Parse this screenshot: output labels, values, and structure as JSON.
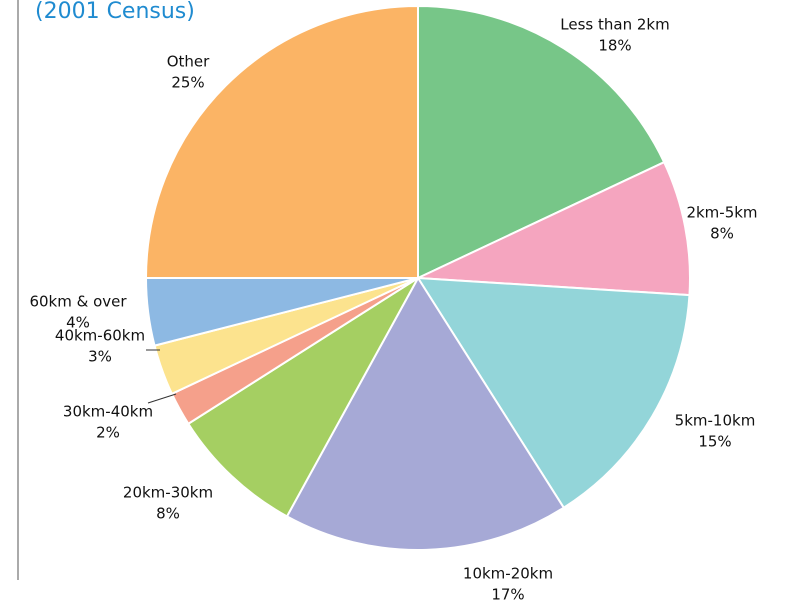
{
  "chart_data": {
    "type": "pie",
    "title": "(2001 Census)",
    "categories": [
      "Less than 2km",
      "2km-5km",
      "5km-10km",
      "10km-20km",
      "20km-30km",
      "30km-40km",
      "40km-60km",
      "60km & over",
      "Other"
    ],
    "values": [
      18,
      8,
      15,
      17,
      8,
      2,
      3,
      4,
      25
    ],
    "value_labels": [
      "18%",
      "8%",
      "15%",
      "17%",
      "8%",
      "2%",
      "3%",
      "4%",
      "25%"
    ],
    "colors": [
      "#77c688",
      "#f5a5bf",
      "#93d5d9",
      "#a6a9d6",
      "#a5cf62",
      "#f5a08b",
      "#fce38e",
      "#8db9e3",
      "#fbb465"
    ]
  }
}
